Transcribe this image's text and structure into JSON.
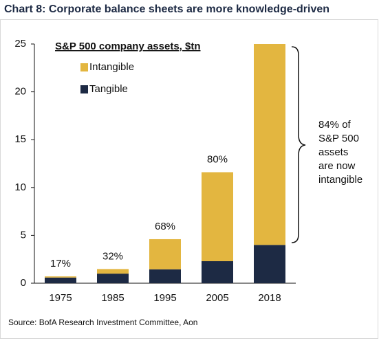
{
  "chart_data": {
    "type": "stacked_bar",
    "title": "Chart 8: Corporate balance sheets are more knowledge-driven",
    "legend_title": "S&P 500 company assets, $tn",
    "categories": [
      "1975",
      "1985",
      "1995",
      "2005",
      "2018"
    ],
    "series": [
      {
        "name": "Tangible",
        "color": "#1d2a44",
        "values": [
          0.59,
          1.0,
          1.45,
          2.3,
          4.0
        ]
      },
      {
        "name": "Intangible",
        "color": "#e3b640",
        "values": [
          0.12,
          0.48,
          3.15,
          9.3,
          21.0
        ]
      }
    ],
    "share_labels": [
      "17%",
      "32%",
      "68%",
      "80%",
      "84%"
    ],
    "annotation_lines": [
      "84% of",
      "S&P 500",
      "assets",
      "are now",
      "intangible"
    ],
    "source": "Source: BofA Research Investment Committee, Aon",
    "ylim": [
      0,
      25
    ],
    "yticks": [
      0,
      5,
      10,
      15,
      20,
      25
    ]
  }
}
